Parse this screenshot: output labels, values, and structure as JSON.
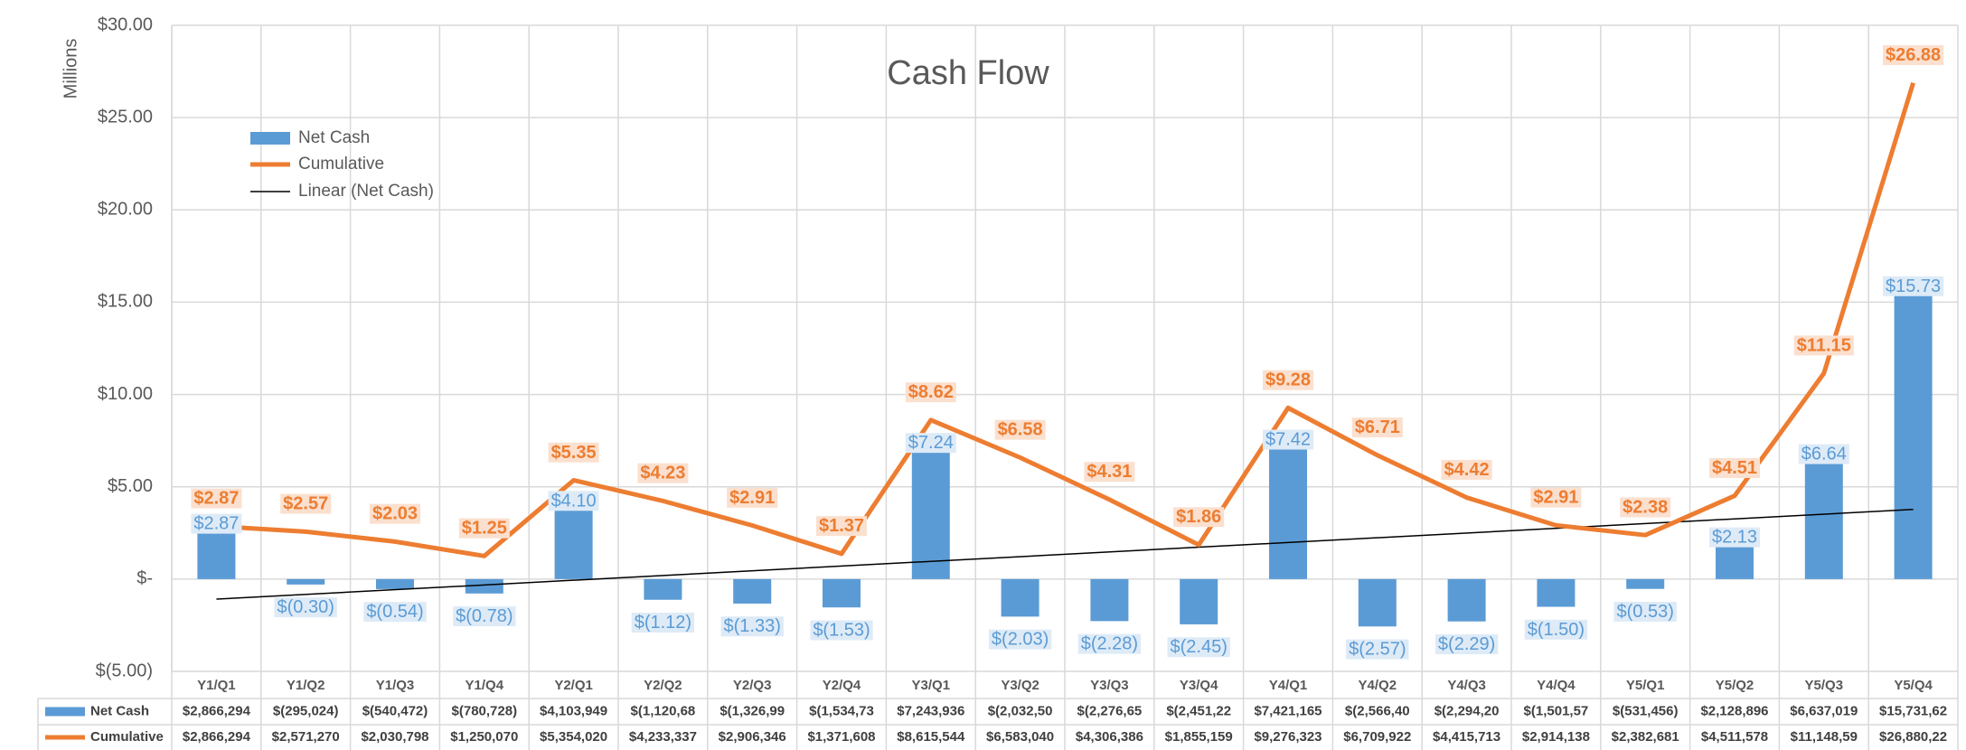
{
  "chart_data": {
    "type": "bar",
    "title": "Cash Flow",
    "y_label": "Millions",
    "categories": [
      "Y1/Q1",
      "Y1/Q2",
      "Y1/Q3",
      "Y1/Q4",
      "Y2/Q1",
      "Y2/Q2",
      "Y2/Q3",
      "Y2/Q4",
      "Y3/Q1",
      "Y3/Q2",
      "Y3/Q3",
      "Y3/Q4",
      "Y4/Q1",
      "Y4/Q2",
      "Y4/Q3",
      "Y4/Q4",
      "Y5/Q1",
      "Y5/Q2",
      "Y5/Q3",
      "Y5/Q4"
    ],
    "series": [
      {
        "name": "Net Cash",
        "type": "bar",
        "color": "#5b9bd5",
        "values": [
          2.866294,
          -0.295024,
          -0.540472,
          -0.780728,
          4.103949,
          -1.120683,
          -1.326991,
          -1.534738,
          7.243936,
          -2.032504,
          -2.276654,
          -2.451227,
          7.421165,
          -2.566401,
          -2.294209,
          -1.501575,
          -0.531456,
          2.128896,
          6.637019,
          15.731625
        ],
        "value_labels": [
          "$2.87",
          "$(0.30)",
          "$(0.54)",
          "$(0.78)",
          "$4.10",
          "$(1.12)",
          "$(1.33)",
          "$(1.53)",
          "$7.24",
          "$(2.03)",
          "$(2.28)",
          "$(2.45)",
          "$7.42",
          "$(2.57)",
          "$(2.29)",
          "$(1.50)",
          "$(0.53)",
          "$2.13",
          "$6.64",
          "$15.73"
        ],
        "table_labels": [
          "$2,866,294",
          "$(295,024)",
          "$(540,472)",
          "$(780,728)",
          "$4,103,949",
          "$(1,120,68",
          "$(1,326,99",
          "$(1,534,73",
          "$7,243,936",
          "$(2,032,50",
          "$(2,276,65",
          "$(2,451,22",
          "$7,421,165",
          "$(2,566,40",
          "$(2,294,20",
          "$(1,501,57",
          "$(531,456)",
          "$2,128,896",
          "$6,637,019",
          "$15,731,62"
        ]
      },
      {
        "name": "Cumulative",
        "type": "line",
        "color": "#ed7d31",
        "values": [
          2.866294,
          2.57127,
          2.030798,
          1.25007,
          5.35402,
          4.233337,
          2.906346,
          1.371608,
          8.615544,
          6.58304,
          4.306386,
          1.855159,
          9.276323,
          6.709922,
          4.415713,
          2.914138,
          2.382681,
          4.511578,
          11.148597,
          26.880222
        ],
        "value_labels": [
          "$2.87",
          "$2.57",
          "$2.03",
          "$1.25",
          "$5.35",
          "$4.23",
          "$2.91",
          "$1.37",
          "$8.62",
          "$6.58",
          "$4.31",
          "$1.86",
          "$9.28",
          "$6.71",
          "$4.42",
          "$2.91",
          "$2.38",
          "$4.51",
          "$11.15",
          "$26.88"
        ],
        "table_labels": [
          "$2,866,294",
          "$2,571,270",
          "$2,030,798",
          "$1,250,070",
          "$5,354,020",
          "$4,233,337",
          "$2,906,346",
          "$1,371,608",
          "$8,615,544",
          "$6,583,040",
          "$4,306,386",
          "$1,855,159",
          "$9,276,323",
          "$6,709,922",
          "$4,415,713",
          "$2,914,138",
          "$2,382,681",
          "$4,511,578",
          "$11,148,59",
          "$26,880,22"
        ]
      }
    ],
    "trendline": {
      "name": "Linear (Net Cash)",
      "color": "#000000"
    },
    "ylim": [
      -5,
      30
    ],
    "yticks": [
      {
        "value": -5,
        "label": "$(5.00)"
      },
      {
        "value": 0,
        "label": "$-"
      },
      {
        "value": 5,
        "label": "$5.00"
      },
      {
        "value": 10,
        "label": "$10.00"
      },
      {
        "value": 15,
        "label": "$15.00"
      },
      {
        "value": 20,
        "label": "$20.00"
      },
      {
        "value": 25,
        "label": "$25.00"
      },
      {
        "value": 30,
        "label": "$30.00"
      }
    ],
    "grid": true,
    "legend": "top-left"
  }
}
